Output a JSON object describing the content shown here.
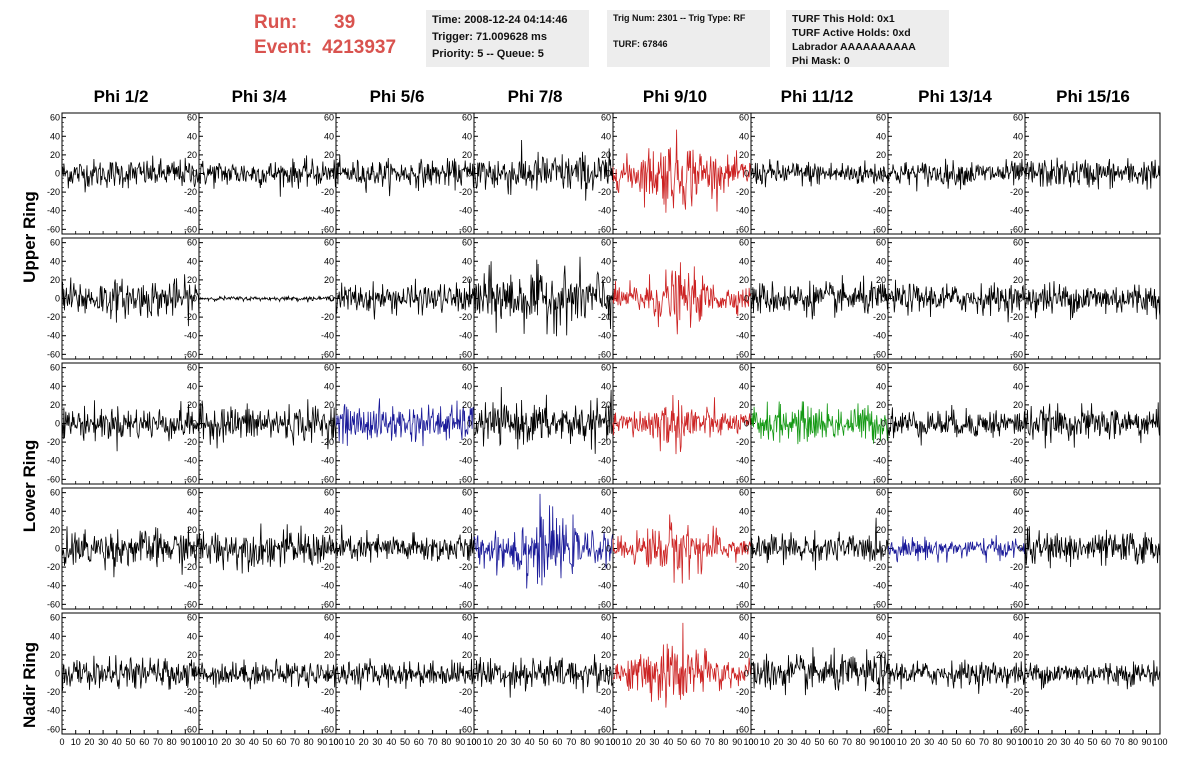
{
  "header": {
    "run_label": "Run:",
    "run_value": "39",
    "event_label": "Event:",
    "event_value": "4213937"
  },
  "info_time": {
    "line1": "Time: 2008-12-24 04:14:46",
    "line2": "Trigger: 71.009628 ms",
    "line3": "Priority: 5 -- Queue: 5"
  },
  "info_trig": {
    "line1": "Trig Num: 2301 -- Trig Type: RF",
    "line2": "",
    "line3": "TURF: 67846"
  },
  "info_turf": {
    "line1": "TURF This Hold: 0x1",
    "line2": "TURF Active Holds: 0xd",
    "line3": "Labrador AAAAAAAAAA",
    "line4": "Phi Mask: 0"
  },
  "columns": [
    "Phi 1/2",
    "Phi 3/4",
    "Phi 5/6",
    "Phi 7/8",
    "Phi 9/10",
    "Phi 11/12",
    "Phi 13/14",
    "Phi 15/16"
  ],
  "row_labels": [
    "Upper Ring",
    "Lower Ring",
    "Nadir Ring"
  ],
  "colors": {
    "black": "#000000",
    "red": "#cc2222",
    "blue": "#1a1a99",
    "green": "#149914",
    "header_red": "#d9534f",
    "infobox_bg": "#ededed"
  },
  "chart_data": {
    "type": "line",
    "title": "",
    "xlabel": "",
    "ylabel": "",
    "xlim": [
      0,
      100
    ],
    "ylim": [
      -65,
      65
    ],
    "y_ticks": [
      60,
      40,
      20,
      0,
      -20,
      -40,
      -60
    ],
    "x_ticks": [
      0,
      10,
      20,
      30,
      40,
      50,
      60,
      70,
      80,
      90,
      100
    ],
    "x_tick_labels": [
      "0",
      "10",
      "20",
      "30",
      "40",
      "50",
      "60",
      "70",
      "80",
      "90",
      "100"
    ],
    "panel_rows": 5,
    "panel_cols": 8,
    "panels": [
      [
        {
          "color": "black",
          "amp": 14
        },
        {
          "color": "black",
          "amp": 13
        },
        {
          "color": "black",
          "amp": 13
        },
        {
          "color": "black",
          "amp": 20
        },
        {
          "color": "red",
          "amp": 30
        },
        {
          "color": "black",
          "amp": 12
        },
        {
          "color": "black",
          "amp": 12
        },
        {
          "color": "black",
          "amp": 14
        }
      ],
      [
        {
          "color": "black",
          "amp": 18
        },
        {
          "color": "black",
          "amp": 2
        },
        {
          "color": "black",
          "amp": 14
        },
        {
          "color": "black",
          "amp": 28
        },
        {
          "color": "red",
          "amp": 24
        },
        {
          "color": "black",
          "amp": 16
        },
        {
          "color": "black",
          "amp": 14
        },
        {
          "color": "black",
          "amp": 16
        }
      ],
      [
        {
          "color": "black",
          "amp": 16
        },
        {
          "color": "black",
          "amp": 18
        },
        {
          "color": "blue",
          "amp": 18
        },
        {
          "color": "black",
          "amp": 20
        },
        {
          "color": "red",
          "amp": 22
        },
        {
          "color": "green",
          "amp": 18
        },
        {
          "color": "black",
          "amp": 14
        },
        {
          "color": "black",
          "amp": 16
        }
      ],
      [
        {
          "color": "black",
          "amp": 18
        },
        {
          "color": "black",
          "amp": 18
        },
        {
          "color": "black",
          "amp": 14
        },
        {
          "color": "blue",
          "amp": 30
        },
        {
          "color": "red",
          "amp": 24
        },
        {
          "color": "black",
          "amp": 14
        },
        {
          "color": "blue",
          "amp": 10
        },
        {
          "color": "black",
          "amp": 16
        }
      ],
      [
        {
          "color": "black",
          "amp": 14
        },
        {
          "color": "black",
          "amp": 12
        },
        {
          "color": "black",
          "amp": 12
        },
        {
          "color": "black",
          "amp": 16
        },
        {
          "color": "red",
          "amp": 28
        },
        {
          "color": "black",
          "amp": 18
        },
        {
          "color": "black",
          "amp": 12
        },
        {
          "color": "black",
          "amp": 12
        }
      ]
    ]
  }
}
